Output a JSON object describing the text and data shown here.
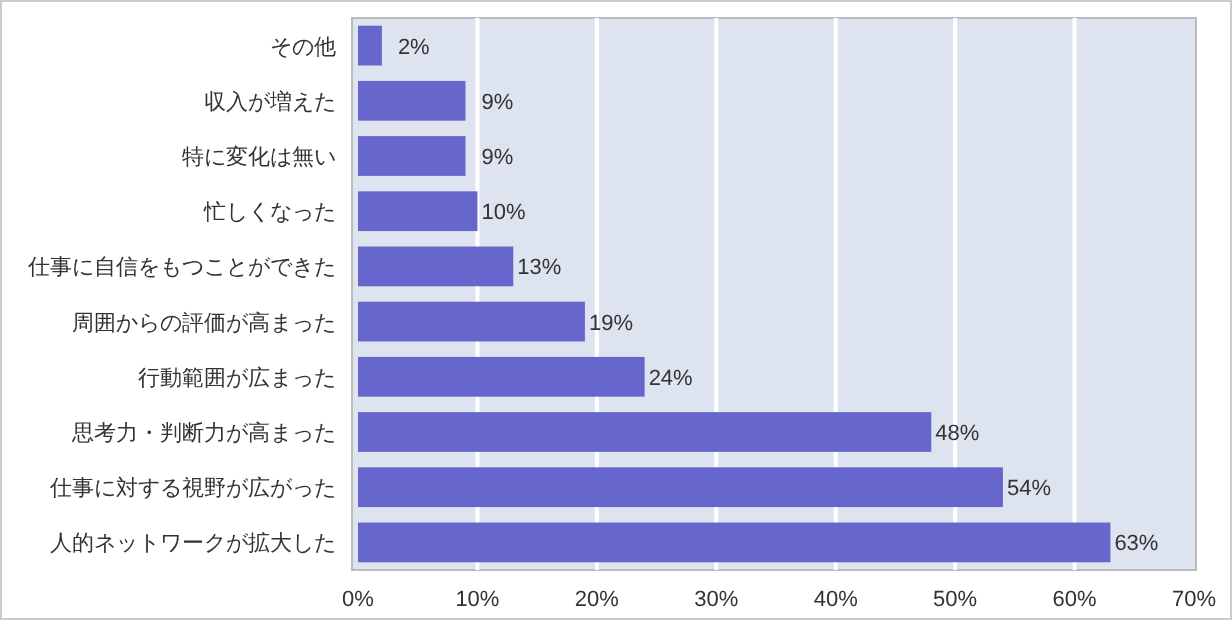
{
  "chart_data": {
    "type": "bar",
    "orientation": "horizontal",
    "categories": [
      "その他",
      "収入が増えた",
      "特に変化は無い",
      "忙しくなった",
      "仕事に自信をもつことができた",
      "周囲からの評価が高まった",
      "行動範囲が広まった",
      "思考力・判断力が高まった",
      "仕事に対する視野が広がった",
      "人的ネットワークが拡大した"
    ],
    "values": [
      2,
      9,
      9,
      10,
      13,
      19,
      24,
      48,
      54,
      63
    ],
    "value_labels": [
      "2%",
      "9%",
      "9%",
      "10%",
      "13%",
      "19%",
      "24%",
      "48%",
      "54%",
      "63%"
    ],
    "color": "#6666cc",
    "xlim": [
      0,
      70
    ],
    "xticks": [
      {
        "value": 0,
        "label": "0%"
      },
      {
        "value": 10,
        "label": "10%"
      },
      {
        "value": 20,
        "label": "20%"
      },
      {
        "value": 30,
        "label": "30%"
      },
      {
        "value": 40,
        "label": "40%"
      },
      {
        "value": 50,
        "label": "50%"
      },
      {
        "value": 60,
        "label": "60%"
      },
      {
        "value": 70,
        "label": "70%"
      }
    ],
    "grid": "x"
  }
}
